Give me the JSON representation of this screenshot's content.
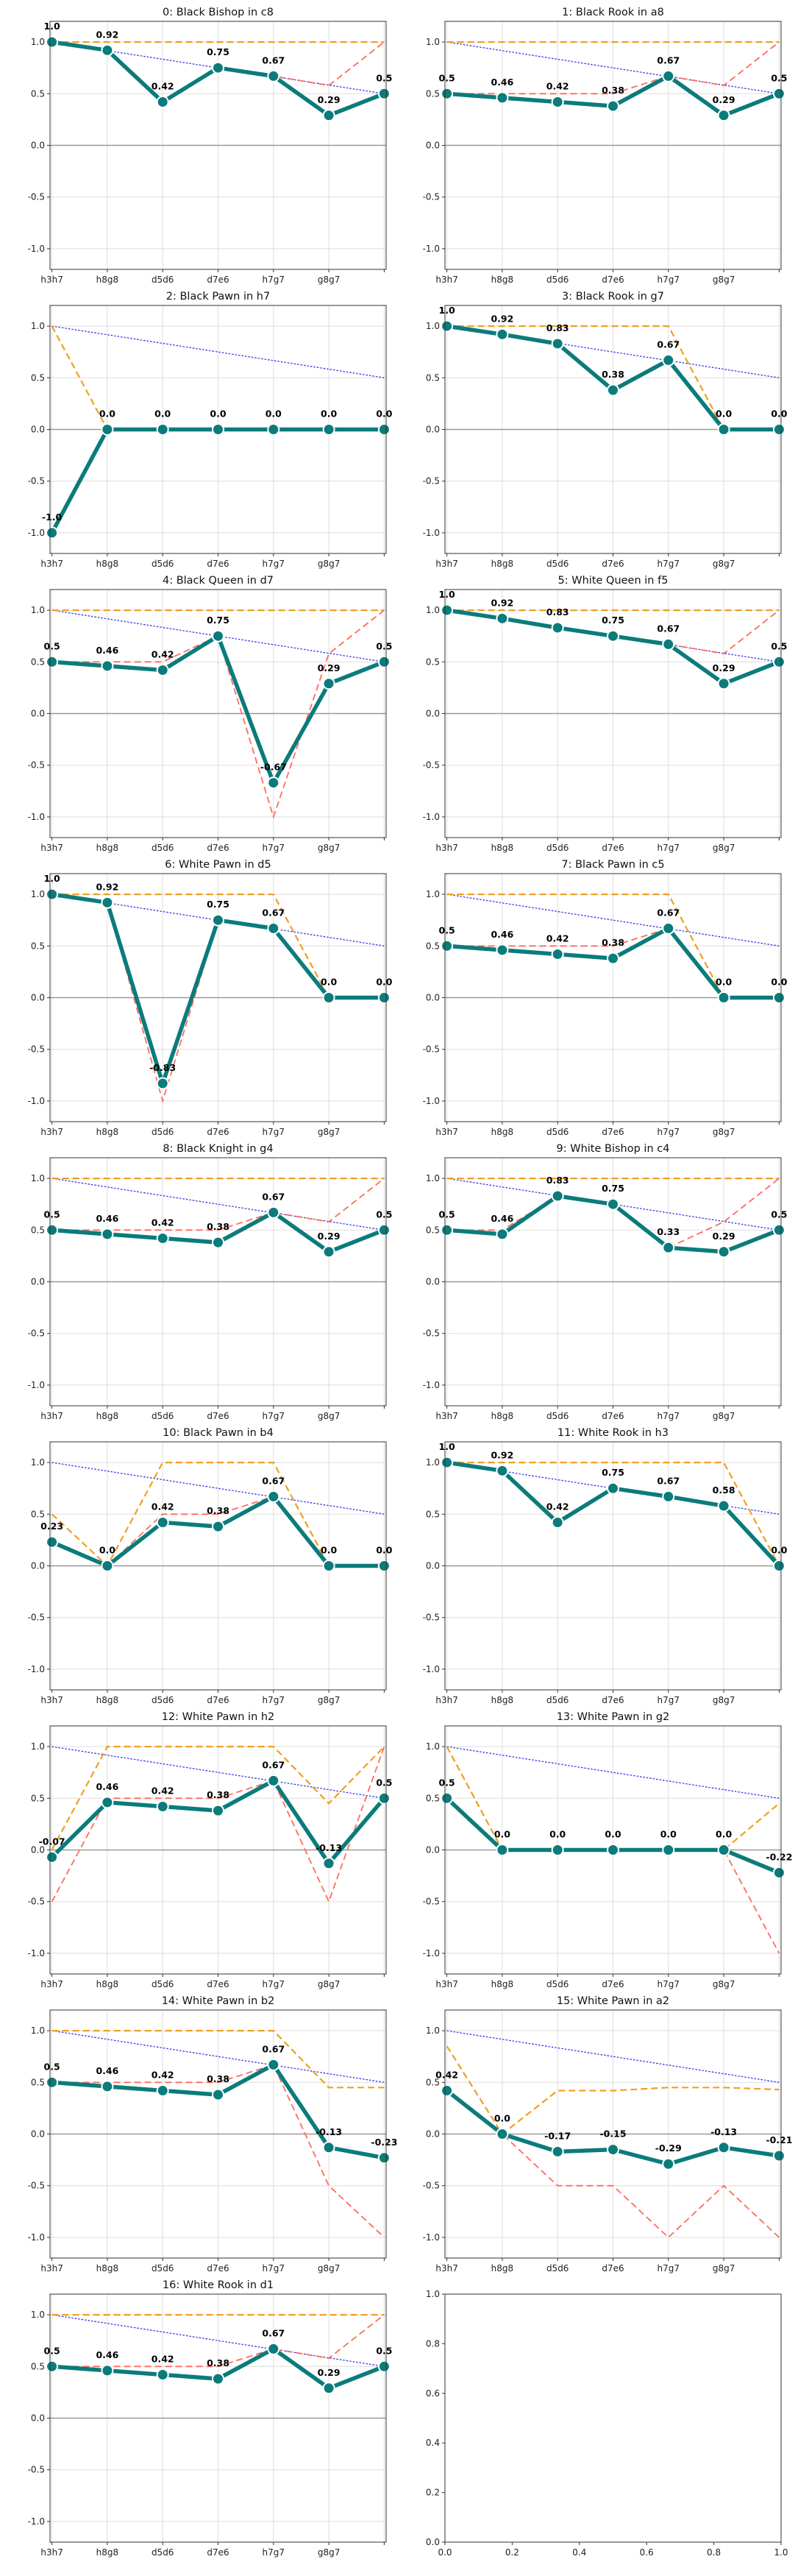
{
  "chart_data": {
    "type": "line",
    "layout": {
      "rows": 9,
      "cols": 2
    },
    "x": [
      "h3h7",
      "h8g8",
      "d5d6",
      "d7e6",
      "h7g7",
      "g8g7",
      ""
    ],
    "ylim": [
      -1.2,
      1.2
    ],
    "yticks": [
      -1.0,
      -0.5,
      0.0,
      0.5,
      1.0
    ],
    "grid": true,
    "colors": {
      "main": "#0b7b7b",
      "upper": "#f0a020",
      "lower": "#ff6b5e",
      "trend": "#3333ee",
      "zero": "#999999"
    },
    "panels": [
      {
        "title": "0: Black Bishop in c8",
        "values": [
          1.0,
          0.92,
          0.42,
          0.75,
          0.67,
          0.29,
          0.5
        ],
        "upper": [
          1.0,
          1.0,
          1.0,
          1.0,
          1.0,
          1.0,
          1.0
        ],
        "lower": [
          1.0,
          0.92,
          0.42,
          0.75,
          0.67,
          0.58,
          1.0
        ],
        "trend": [
          1.0,
          0.5
        ]
      },
      {
        "title": "1: Black Rook in a8",
        "values": [
          0.5,
          0.46,
          0.42,
          0.38,
          0.67,
          0.29,
          0.5
        ],
        "upper": [
          1.0,
          1.0,
          1.0,
          1.0,
          1.0,
          1.0,
          1.0
        ],
        "lower": [
          0.5,
          0.5,
          0.5,
          0.5,
          0.67,
          0.58,
          1.0
        ],
        "trend": [
          1.0,
          0.5
        ]
      },
      {
        "title": "2: Black Pawn in h7",
        "values": [
          -1.0,
          0.0,
          0.0,
          0.0,
          0.0,
          0.0,
          0.0
        ],
        "upper": [
          1.0,
          0.0,
          0.0,
          0.0,
          0.0,
          0.0,
          0.0
        ],
        "lower": [
          -1.0,
          0.0,
          0.0,
          0.0,
          0.0,
          0.0,
          0.0
        ],
        "trend": [
          1.0,
          0.5
        ]
      },
      {
        "title": "3: Black Rook in g7",
        "values": [
          1.0,
          0.92,
          0.83,
          0.38,
          0.67,
          0.0,
          0.0
        ],
        "upper": [
          1.0,
          1.0,
          1.0,
          1.0,
          1.0,
          0.0,
          0.0
        ],
        "lower": [
          1.0,
          0.92,
          0.83,
          0.38,
          0.67,
          0.0,
          0.0
        ],
        "trend": [
          1.0,
          0.5
        ]
      },
      {
        "title": "4: Black Queen in d7",
        "values": [
          0.5,
          0.46,
          0.42,
          0.75,
          -0.67,
          0.29,
          0.5
        ],
        "upper": [
          1.0,
          1.0,
          1.0,
          1.0,
          1.0,
          1.0,
          1.0
        ],
        "lower": [
          0.5,
          0.5,
          0.5,
          0.75,
          -1.0,
          0.58,
          1.0
        ],
        "trend": [
          1.0,
          0.5
        ]
      },
      {
        "title": "5: White Queen in f5",
        "values": [
          1.0,
          0.92,
          0.83,
          0.75,
          0.67,
          0.29,
          0.5
        ],
        "upper": [
          1.0,
          1.0,
          1.0,
          1.0,
          1.0,
          1.0,
          1.0
        ],
        "lower": [
          1.0,
          0.92,
          0.83,
          0.75,
          0.67,
          0.58,
          1.0
        ],
        "trend": [
          1.0,
          0.5
        ]
      },
      {
        "title": "6: White Pawn in d5",
        "values": [
          1.0,
          0.92,
          -0.83,
          0.75,
          0.67,
          0.0,
          0.0
        ],
        "upper": [
          1.0,
          1.0,
          1.0,
          1.0,
          1.0,
          0.0,
          0.0
        ],
        "lower": [
          1.0,
          0.92,
          -1.0,
          0.75,
          0.67,
          0.0,
          0.0
        ],
        "trend": [
          1.0,
          0.5
        ]
      },
      {
        "title": "7: Black Pawn in c5",
        "values": [
          0.5,
          0.46,
          0.42,
          0.38,
          0.67,
          0.0,
          0.0
        ],
        "upper": [
          1.0,
          1.0,
          1.0,
          1.0,
          1.0,
          0.0,
          0.0
        ],
        "lower": [
          0.5,
          0.5,
          0.5,
          0.5,
          0.67,
          0.0,
          0.0
        ],
        "trend": [
          1.0,
          0.5
        ]
      },
      {
        "title": "8: Black Knight in g4",
        "values": [
          0.5,
          0.46,
          0.42,
          0.38,
          0.67,
          0.29,
          0.5
        ],
        "upper": [
          1.0,
          1.0,
          1.0,
          1.0,
          1.0,
          1.0,
          1.0
        ],
        "lower": [
          0.5,
          0.5,
          0.5,
          0.5,
          0.67,
          0.58,
          1.0
        ],
        "trend": [
          1.0,
          0.5
        ]
      },
      {
        "title": "9: White Bishop in c4",
        "values": [
          0.5,
          0.46,
          0.83,
          0.75,
          0.33,
          0.29,
          0.5
        ],
        "upper": [
          1.0,
          1.0,
          1.0,
          1.0,
          1.0,
          1.0,
          1.0
        ],
        "lower": [
          0.5,
          0.5,
          0.83,
          0.75,
          0.33,
          0.58,
          1.0
        ],
        "trend": [
          1.0,
          0.5
        ]
      },
      {
        "title": "10: Black Pawn in b4",
        "values": [
          0.23,
          0.0,
          0.42,
          0.38,
          0.67,
          0.0,
          0.0
        ],
        "upper": [
          0.5,
          0.0,
          1.0,
          1.0,
          1.0,
          0.0,
          0.0
        ],
        "lower": [
          0.23,
          0.0,
          0.5,
          0.5,
          0.67,
          0.0,
          0.0
        ],
        "trend": [
          1.0,
          0.5
        ]
      },
      {
        "title": "11: White Rook in h3",
        "values": [
          1.0,
          0.92,
          0.42,
          0.75,
          0.67,
          0.58,
          0.0
        ],
        "upper": [
          1.0,
          1.0,
          1.0,
          1.0,
          1.0,
          1.0,
          0.0
        ],
        "lower": [
          1.0,
          0.92,
          0.42,
          0.75,
          0.67,
          0.58,
          0.0
        ],
        "trend": [
          1.0,
          0.5
        ]
      },
      {
        "title": "12: White Pawn in h2",
        "values": [
          -0.07,
          0.46,
          0.42,
          0.38,
          0.67,
          -0.13,
          0.5
        ],
        "upper": [
          0.0,
          1.0,
          1.0,
          1.0,
          1.0,
          0.45,
          1.0
        ],
        "lower": [
          -0.5,
          0.5,
          0.5,
          0.5,
          0.67,
          -0.5,
          1.0
        ],
        "trend": [
          1.0,
          0.5
        ]
      },
      {
        "title": "13: White Pawn in g2",
        "values": [
          0.5,
          0.0,
          0.0,
          0.0,
          0.0,
          0.0,
          -0.22
        ],
        "upper": [
          1.0,
          0.0,
          0.0,
          0.0,
          0.0,
          0.0,
          0.45
        ],
        "lower": [
          1.0,
          0.0,
          0.0,
          0.0,
          0.0,
          0.0,
          -1.0
        ],
        "trend": [
          1.0,
          0.5
        ]
      },
      {
        "title": "14: White Pawn in b2",
        "values": [
          0.5,
          0.46,
          0.42,
          0.38,
          0.67,
          -0.13,
          -0.23
        ],
        "upper": [
          1.0,
          1.0,
          1.0,
          1.0,
          1.0,
          0.45,
          0.45
        ],
        "lower": [
          0.5,
          0.5,
          0.5,
          0.5,
          0.67,
          -0.5,
          -1.0
        ],
        "trend": [
          1.0,
          0.5
        ]
      },
      {
        "title": "15: White Pawn in a2",
        "values": [
          0.42,
          0.0,
          -0.17,
          -0.15,
          -0.29,
          -0.13,
          -0.21
        ],
        "upper": [
          0.85,
          0.0,
          0.42,
          0.42,
          0.45,
          0.45,
          0.43
        ],
        "lower": [
          0.42,
          0.0,
          -0.5,
          -0.5,
          -1.0,
          -0.5,
          -1.0
        ],
        "trend": [
          1.0,
          0.5
        ]
      },
      {
        "title": "16: White Rook in d1",
        "values": [
          0.5,
          0.46,
          0.42,
          0.38,
          0.67,
          0.29,
          0.5
        ],
        "upper": [
          1.0,
          1.0,
          1.0,
          1.0,
          1.0,
          1.0,
          1.0
        ],
        "lower": [
          0.5,
          0.5,
          0.5,
          0.5,
          0.67,
          0.58,
          1.0
        ],
        "trend": [
          1.0,
          0.5
        ]
      }
    ],
    "empty_panel": {
      "xlim": [
        0.0,
        1.0
      ],
      "ylim": [
        0.0,
        1.0
      ],
      "ticks": [
        "0.0",
        "0.2",
        "0.4",
        "0.6",
        "0.8",
        "1.0"
      ]
    }
  }
}
